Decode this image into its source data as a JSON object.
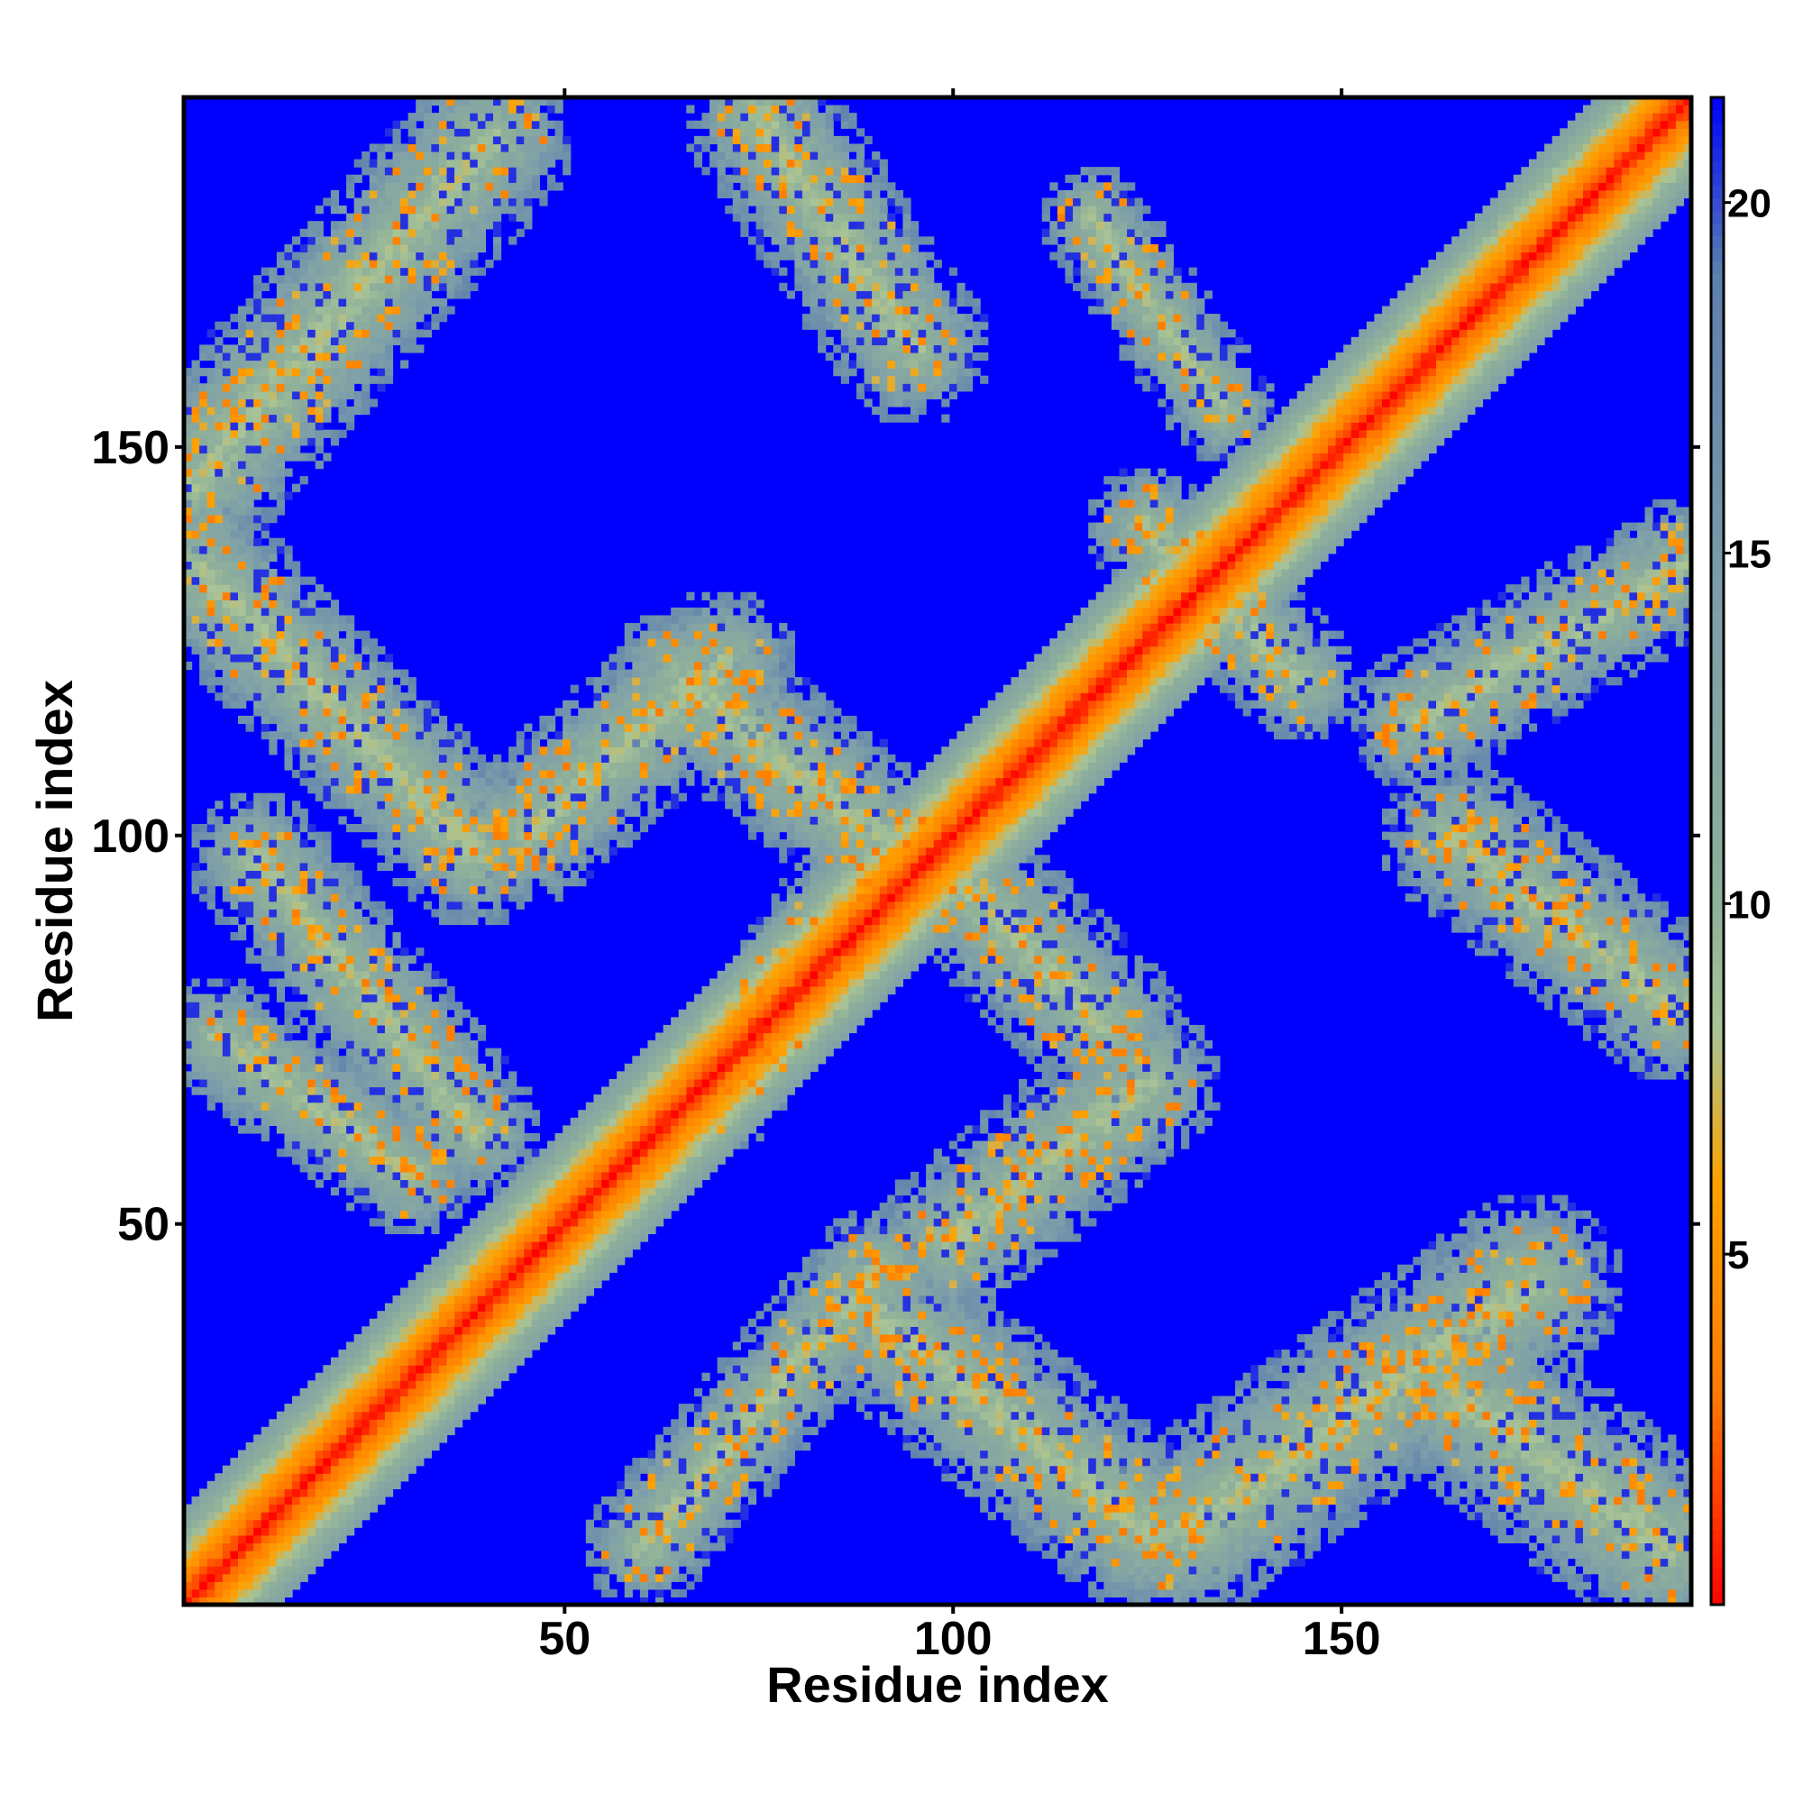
{
  "chart_data": {
    "type": "heatmap",
    "title": "",
    "xlabel": "Residue index",
    "ylabel": "Residue index",
    "n_residues": 195,
    "xlim": [
      1,
      195
    ],
    "ylim": [
      1,
      195
    ],
    "x_ticks": [
      50,
      100,
      150
    ],
    "y_ticks": [
      50,
      100,
      150
    ],
    "colorbar": {
      "range": [
        0,
        21.5
      ],
      "ticks": [
        5,
        10,
        15,
        20
      ],
      "colors": [
        "#ff0000",
        "#ff7a00",
        "#ffa200",
        "#a9c497",
        "#8fb09a",
        "#7fa0a8",
        "#5d7fae",
        "#0000ff"
      ],
      "stops": [
        0,
        3,
        6,
        8.2,
        10,
        14,
        19,
        21.5
      ]
    },
    "background_color": "#0000ff",
    "contact_bands": [
      {
        "from": [
          1,
          1
        ],
        "to": [
          195,
          195
        ],
        "width": 8,
        "note": "main diagonal"
      },
      {
        "from": [
          2,
          146
        ],
        "to": [
          40,
          190
        ],
        "width": 11
      },
      {
        "from": [
          2,
          135
        ],
        "to": [
          38,
          98
        ],
        "width": 10
      },
      {
        "from": [
          10,
          97
        ],
        "to": [
          38,
          62
        ],
        "width": 9
      },
      {
        "from": [
          5,
          74
        ],
        "to": [
          30,
          56
        ],
        "width": 8
      },
      {
        "from": [
          45,
          101
        ],
        "to": [
          70,
          122
        ],
        "width": 10
      },
      {
        "from": [
          65,
          120
        ],
        "to": [
          90,
          100
        ],
        "width": 10
      },
      {
        "from": [
          75,
          193
        ],
        "to": [
          95,
          163
        ],
        "width": 10
      },
      {
        "from": [
          70,
          67
        ],
        "to": [
          88,
          95
        ],
        "width": 8
      },
      {
        "from": [
          100,
          95
        ],
        "to": [
          120,
          75
        ],
        "width": 10
      },
      {
        "from": [
          100,
          48
        ],
        "to": [
          125,
          68
        ],
        "width": 10
      },
      {
        "from": [
          60,
          8
        ],
        "to": [
          90,
          44
        ],
        "width": 8
      },
      {
        "from": [
          90,
          38
        ],
        "to": [
          125,
          10
        ],
        "width": 11
      },
      {
        "from": [
          130,
          10
        ],
        "to": [
          175,
          42
        ],
        "width": 12
      },
      {
        "from": [
          165,
          28
        ],
        "to": [
          192,
          8
        ],
        "width": 12
      },
      {
        "from": [
          165,
          100
        ],
        "to": [
          193,
          78
        ],
        "width": 10
      },
      {
        "from": [
          160,
          115
        ],
        "to": [
          195,
          135
        ],
        "width": 9
      },
      {
        "from": [
          125,
          140
        ],
        "to": [
          145,
          120
        ],
        "width": 8
      },
      {
        "from": [
          118,
          180
        ],
        "to": [
          135,
          155
        ],
        "width": 7
      }
    ]
  }
}
